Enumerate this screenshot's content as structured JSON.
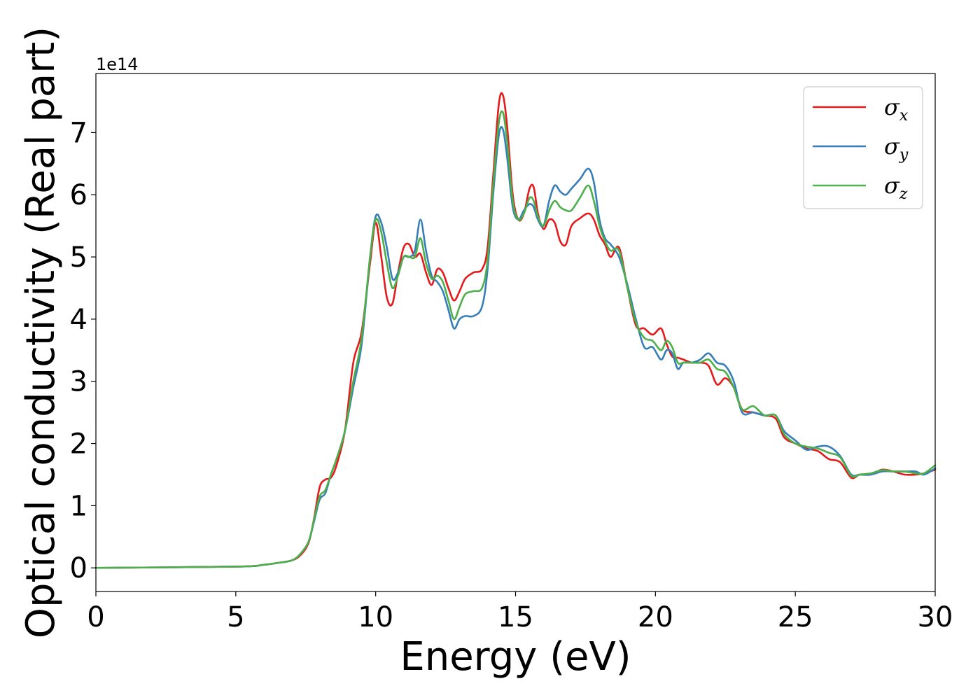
{
  "chart_data": {
    "type": "line",
    "xlabel": "Energy (eV)",
    "ylabel": "Optical conductivity (Real part)",
    "y_offset_label": "1e14",
    "xlim": [
      0,
      30
    ],
    "ylim": [
      -0.38,
      7.95
    ],
    "x_ticks": [
      0,
      5,
      10,
      15,
      20,
      25,
      30
    ],
    "y_ticks": [
      0,
      1,
      2,
      3,
      4,
      5,
      6,
      7
    ],
    "grid": false,
    "legend_position": "top-right",
    "series": [
      {
        "name": "σx",
        "legend_base": "σ",
        "legend_sub": "x",
        "color": "#e41a1c",
        "x": [
          0,
          5,
          6,
          6.5,
          7,
          7.3,
          7.6,
          7.8,
          8.0,
          8.2,
          8.4,
          8.6,
          8.9,
          9.2,
          9.5,
          9.8,
          10.0,
          10.2,
          10.4,
          10.6,
          10.8,
          11.0,
          11.2,
          11.4,
          11.6,
          11.8,
          12.0,
          12.2,
          12.4,
          12.6,
          12.8,
          13.0,
          13.2,
          13.5,
          13.8,
          14.0,
          14.2,
          14.4,
          14.55,
          14.7,
          14.9,
          15.1,
          15.3,
          15.5,
          15.65,
          15.8,
          16.0,
          16.2,
          16.4,
          16.6,
          16.8,
          17.0,
          17.3,
          17.6,
          17.8,
          18.0,
          18.2,
          18.4,
          18.7,
          19.0,
          19.3,
          19.6,
          19.9,
          20.2,
          20.4,
          20.6,
          20.8,
          21.0,
          21.3,
          21.6,
          21.9,
          22.2,
          22.5,
          22.8,
          23.1,
          23.5,
          23.9,
          24.3,
          24.6,
          25.0,
          25.4,
          25.8,
          26.2,
          26.6,
          27.0,
          27.3,
          27.7,
          28.1,
          28.5,
          28.9,
          29.3,
          29.6,
          30.0
        ],
        "values": [
          0,
          0.02,
          0.05,
          0.08,
          0.12,
          0.2,
          0.4,
          0.8,
          1.3,
          1.42,
          1.45,
          1.65,
          2.2,
          3.3,
          3.8,
          4.9,
          5.55,
          5.0,
          4.35,
          4.25,
          4.75,
          5.15,
          5.2,
          5.0,
          5.05,
          4.75,
          4.55,
          4.8,
          4.75,
          4.5,
          4.3,
          4.45,
          4.65,
          4.75,
          4.8,
          5.15,
          6.3,
          7.45,
          7.6,
          7.1,
          6.0,
          5.6,
          5.7,
          6.1,
          6.12,
          5.7,
          5.45,
          5.6,
          5.55,
          5.25,
          5.2,
          5.5,
          5.62,
          5.7,
          5.6,
          5.35,
          5.2,
          5.0,
          5.15,
          4.5,
          3.9,
          3.85,
          3.75,
          3.85,
          3.6,
          3.4,
          3.38,
          3.35,
          3.3,
          3.3,
          3.25,
          2.95,
          3.05,
          2.9,
          2.55,
          2.5,
          2.45,
          2.4,
          2.1,
          2.0,
          1.92,
          1.88,
          1.75,
          1.7,
          1.45,
          1.5,
          1.5,
          1.58,
          1.55,
          1.5,
          1.5,
          1.52,
          1.58
        ]
      },
      {
        "name": "σy",
        "legend_base": "σ",
        "legend_sub": "y",
        "color": "#377eb8",
        "x": [
          0,
          5,
          6,
          6.5,
          7,
          7.3,
          7.6,
          7.8,
          8.0,
          8.2,
          8.4,
          8.6,
          8.9,
          9.2,
          9.5,
          9.8,
          10.0,
          10.2,
          10.4,
          10.6,
          10.8,
          11.0,
          11.2,
          11.4,
          11.6,
          11.8,
          12.0,
          12.2,
          12.4,
          12.6,
          12.8,
          13.0,
          13.2,
          13.5,
          13.8,
          14.0,
          14.2,
          14.4,
          14.55,
          14.7,
          14.9,
          15.1,
          15.3,
          15.5,
          15.65,
          15.8,
          16.0,
          16.2,
          16.4,
          16.6,
          16.8,
          17.0,
          17.3,
          17.6,
          17.8,
          18.0,
          18.2,
          18.4,
          18.7,
          19.0,
          19.3,
          19.6,
          19.9,
          20.2,
          20.4,
          20.6,
          20.8,
          21.0,
          21.3,
          21.6,
          21.9,
          22.2,
          22.5,
          22.8,
          23.1,
          23.5,
          23.9,
          24.3,
          24.6,
          25.0,
          25.4,
          25.8,
          26.2,
          26.6,
          27.0,
          27.3,
          27.7,
          28.1,
          28.5,
          28.9,
          29.3,
          29.6,
          30.0
        ],
        "values": [
          0,
          0.02,
          0.05,
          0.08,
          0.12,
          0.22,
          0.42,
          0.75,
          1.1,
          1.2,
          1.5,
          1.75,
          2.2,
          2.9,
          3.6,
          5.0,
          5.65,
          5.55,
          5.15,
          4.65,
          4.75,
          5.0,
          5.0,
          5.1,
          5.6,
          5.1,
          4.7,
          4.6,
          4.45,
          4.15,
          3.85,
          4.0,
          4.05,
          4.05,
          4.2,
          4.8,
          6.0,
          6.95,
          7.05,
          6.6,
          5.8,
          5.6,
          5.75,
          5.85,
          5.8,
          5.6,
          5.5,
          5.9,
          6.15,
          6.05,
          6.0,
          6.1,
          6.25,
          6.42,
          6.2,
          5.6,
          5.3,
          5.2,
          5.0,
          4.55,
          4.0,
          3.55,
          3.55,
          3.35,
          3.5,
          3.45,
          3.2,
          3.3,
          3.3,
          3.35,
          3.45,
          3.3,
          3.25,
          3.0,
          2.5,
          2.5,
          2.45,
          2.45,
          2.2,
          2.05,
          1.9,
          1.95,
          1.95,
          1.8,
          1.5,
          1.5,
          1.5,
          1.55,
          1.55,
          1.55,
          1.55,
          1.5,
          1.6
        ]
      },
      {
        "name": "σz",
        "legend_base": "σ",
        "legend_sub": "z",
        "color": "#4daf4a",
        "x": [
          0,
          5,
          6,
          6.5,
          7,
          7.3,
          7.6,
          7.8,
          8.0,
          8.2,
          8.4,
          8.6,
          8.9,
          9.2,
          9.5,
          9.8,
          10.0,
          10.2,
          10.4,
          10.6,
          10.8,
          11.0,
          11.2,
          11.4,
          11.6,
          11.8,
          12.0,
          12.2,
          12.4,
          12.6,
          12.8,
          13.0,
          13.2,
          13.5,
          13.8,
          14.0,
          14.2,
          14.4,
          14.55,
          14.7,
          14.9,
          15.1,
          15.3,
          15.5,
          15.65,
          15.8,
          16.0,
          16.2,
          16.4,
          16.6,
          16.8,
          17.0,
          17.3,
          17.6,
          17.8,
          18.0,
          18.2,
          18.4,
          18.7,
          19.0,
          19.3,
          19.6,
          19.9,
          20.2,
          20.4,
          20.6,
          20.8,
          21.0,
          21.3,
          21.6,
          21.9,
          22.2,
          22.5,
          22.8,
          23.1,
          23.5,
          23.9,
          24.3,
          24.6,
          25.0,
          25.4,
          25.8,
          26.2,
          26.6,
          27.0,
          27.3,
          27.7,
          28.1,
          28.5,
          28.9,
          29.3,
          29.6,
          30.0
        ],
        "values": [
          0,
          0.02,
          0.05,
          0.08,
          0.12,
          0.22,
          0.42,
          0.78,
          1.15,
          1.25,
          1.5,
          1.75,
          2.2,
          3.0,
          3.7,
          5.0,
          5.6,
          5.4,
          4.9,
          4.5,
          4.7,
          5.0,
          5.0,
          5.0,
          5.3,
          4.9,
          4.65,
          4.7,
          4.6,
          4.3,
          4.0,
          4.2,
          4.4,
          4.45,
          4.5,
          4.95,
          6.15,
          7.15,
          7.32,
          6.85,
          5.9,
          5.6,
          5.7,
          5.95,
          5.9,
          5.65,
          5.5,
          5.75,
          5.9,
          5.8,
          5.75,
          5.75,
          5.95,
          6.15,
          5.9,
          5.5,
          5.25,
          5.1,
          5.1,
          4.5,
          3.95,
          3.7,
          3.65,
          3.5,
          3.65,
          3.55,
          3.3,
          3.3,
          3.3,
          3.3,
          3.35,
          3.2,
          3.15,
          2.9,
          2.55,
          2.6,
          2.45,
          2.45,
          2.15,
          2.0,
          1.95,
          1.92,
          1.85,
          1.78,
          1.48,
          1.5,
          1.52,
          1.57,
          1.55,
          1.55,
          1.52,
          1.52,
          1.65
        ]
      }
    ]
  }
}
